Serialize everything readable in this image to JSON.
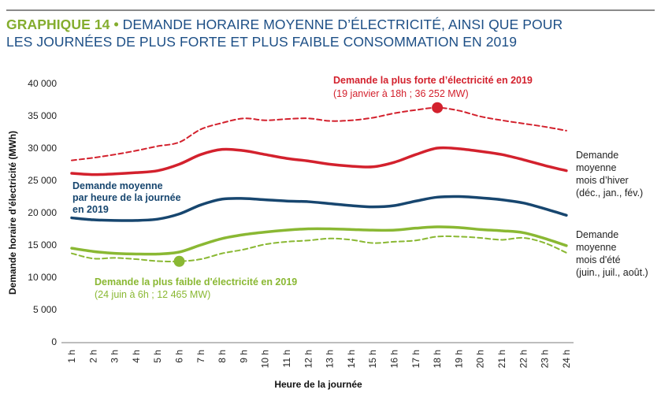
{
  "title": {
    "prefix": "GRAPHIQUE 14 •",
    "line1": " DEMANDE HORAIRE MOYENNE D’ÉLECTRICITÉ, AINSI QUE POUR",
    "line2": "LES JOURNÉES DE PLUS FORTE ET PLUS FAIBLE CONSOMMATION EN 2019"
  },
  "colors": {
    "title_prefix": "#84ad2e",
    "title": "#1d4f86",
    "red": "#d3212d",
    "blue": "#17466f",
    "green": "#8ab833",
    "axis": "#bdbdbd"
  },
  "chart_data": {
    "type": "line",
    "xlabel": "Heure de la journée",
    "ylabel": "Demande horaire d’électricité (MWh)",
    "ylim": [
      0,
      40000
    ],
    "yticks": [
      0,
      5000,
      10000,
      15000,
      20000,
      25000,
      30000,
      35000,
      40000
    ],
    "ytick_labels": [
      "0",
      "5 000",
      "10 000",
      "15 000",
      "20 000",
      "25 000",
      "30 000",
      "35 000",
      "40 000"
    ],
    "categories": [
      "1 h",
      "2 h",
      "3 h",
      "4 h",
      "5 h",
      "6 h",
      "7 h",
      "8 h",
      "9 h",
      "10 h",
      "11 h",
      "12 h",
      "13 h",
      "14 h",
      "15 h",
      "16 h",
      "17 h",
      "18 h",
      "19 h",
      "20 h",
      "21 h",
      "22 h",
      "23 h",
      "24 h"
    ],
    "grid": false,
    "series": [
      {
        "key": "max",
        "style": "dashed",
        "color": "#d3212d",
        "values": [
          28100,
          28500,
          29000,
          29600,
          30300,
          30900,
          32900,
          33900,
          34600,
          34300,
          34500,
          34600,
          34200,
          34300,
          34700,
          35400,
          35900,
          36252,
          35800,
          34900,
          34300,
          33800,
          33300,
          32700
        ]
      },
      {
        "key": "winter",
        "style": "solid",
        "color": "#d3212d",
        "values": [
          26100,
          25900,
          26000,
          26200,
          26500,
          27500,
          29000,
          29800,
          29600,
          29000,
          28400,
          28000,
          27500,
          27200,
          27100,
          27800,
          29000,
          30000,
          29900,
          29500,
          29000,
          28200,
          27300,
          26500
        ]
      },
      {
        "key": "average",
        "style": "solid",
        "color": "#17466f",
        "values": [
          19200,
          18900,
          18800,
          18800,
          19000,
          19800,
          21200,
          22100,
          22200,
          22000,
          21800,
          21700,
          21400,
          21100,
          20900,
          21100,
          21800,
          22400,
          22500,
          22300,
          22000,
          21500,
          20600,
          19600
        ]
      },
      {
        "key": "summer",
        "style": "solid",
        "color": "#8ab833",
        "values": [
          14500,
          14000,
          13700,
          13600,
          13600,
          13900,
          15000,
          16000,
          16600,
          17000,
          17300,
          17500,
          17500,
          17400,
          17300,
          17300,
          17600,
          17800,
          17700,
          17400,
          17200,
          16900,
          16000,
          14900
        ]
      },
      {
        "key": "min",
        "style": "dashed",
        "color": "#8ab833",
        "values": [
          13700,
          12900,
          13000,
          12800,
          12500,
          12465,
          12800,
          13700,
          14300,
          15100,
          15500,
          15700,
          16000,
          15800,
          15300,
          15500,
          15700,
          16300,
          16300,
          16100,
          15800,
          16100,
          15300,
          13800
        ]
      }
    ],
    "markers": [
      {
        "series": "max",
        "hour": "18 h",
        "value": 36252,
        "color": "#d3212d"
      },
      {
        "series": "min",
        "hour": "6 h",
        "value": 12465,
        "color": "#8ab833"
      }
    ],
    "annotations": {
      "max_title": "Demande la plus forte d’électricité en 2019",
      "max_detail": "(19 janvier à 18h ; 36 252 MW)",
      "min_title": "Demande la plus faible d'électricité en 2019",
      "min_detail": "(24 juin à 6h ; 12 465 MW)",
      "average": [
        "Demande moyenne",
        "par heure de la journée",
        "en 2019"
      ],
      "winter": [
        "Demande",
        "moyenne",
        "mois d’hiver",
        "(déc., jan., fév.)"
      ],
      "summer": [
        "Demande",
        "moyenne",
        "mois d'été",
        "(juin., juil., août.)"
      ]
    }
  }
}
